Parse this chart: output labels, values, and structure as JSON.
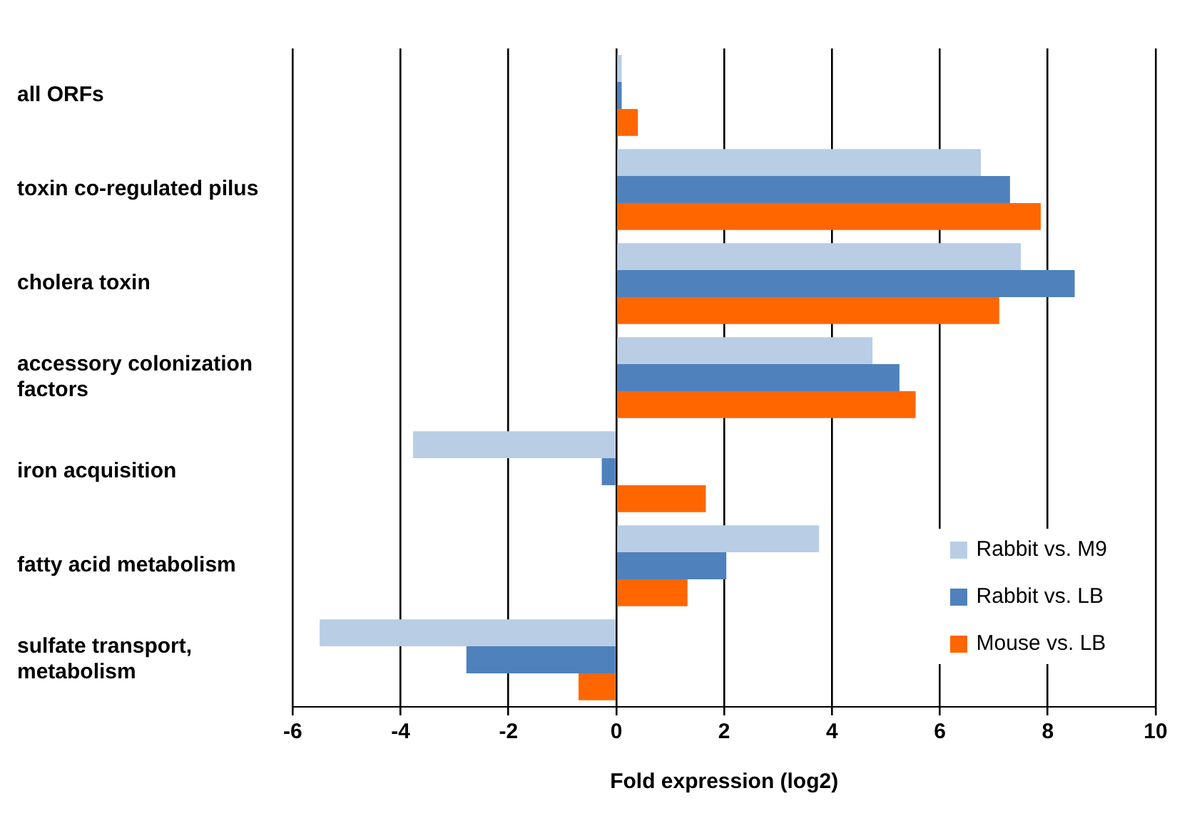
{
  "chart_data": {
    "type": "bar",
    "orientation": "horizontal",
    "xlabel": "Fold expression (log2)",
    "categories": [
      "all ORFs",
      "toxin co-regulated pilus",
      "cholera toxin",
      "accessory colonization factors",
      "iron acquisition",
      "fatty acid metabolism",
      "sulfate transport, metabolism"
    ],
    "series": [
      {
        "name": "Rabbit vs. M9",
        "color": "#b9cde5",
        "values": [
          0.1,
          6.76,
          7.5,
          4.75,
          -3.77,
          3.76,
          -5.5
        ]
      },
      {
        "name": "Rabbit vs. LB",
        "color": "#4f81bd",
        "values": [
          0.1,
          7.3,
          8.5,
          5.25,
          -0.27,
          2.04,
          -2.78
        ]
      },
      {
        "name": "Mouse vs. LB",
        "color": "#ff6600",
        "values": [
          0.4,
          7.87,
          7.1,
          5.55,
          1.66,
          1.32,
          -0.7
        ]
      }
    ],
    "xlim": [
      -6,
      10
    ],
    "xticks": [
      -6,
      -4,
      -2,
      0,
      2,
      4,
      6,
      8,
      10
    ],
    "grid": "x",
    "legend": "bottom right"
  }
}
